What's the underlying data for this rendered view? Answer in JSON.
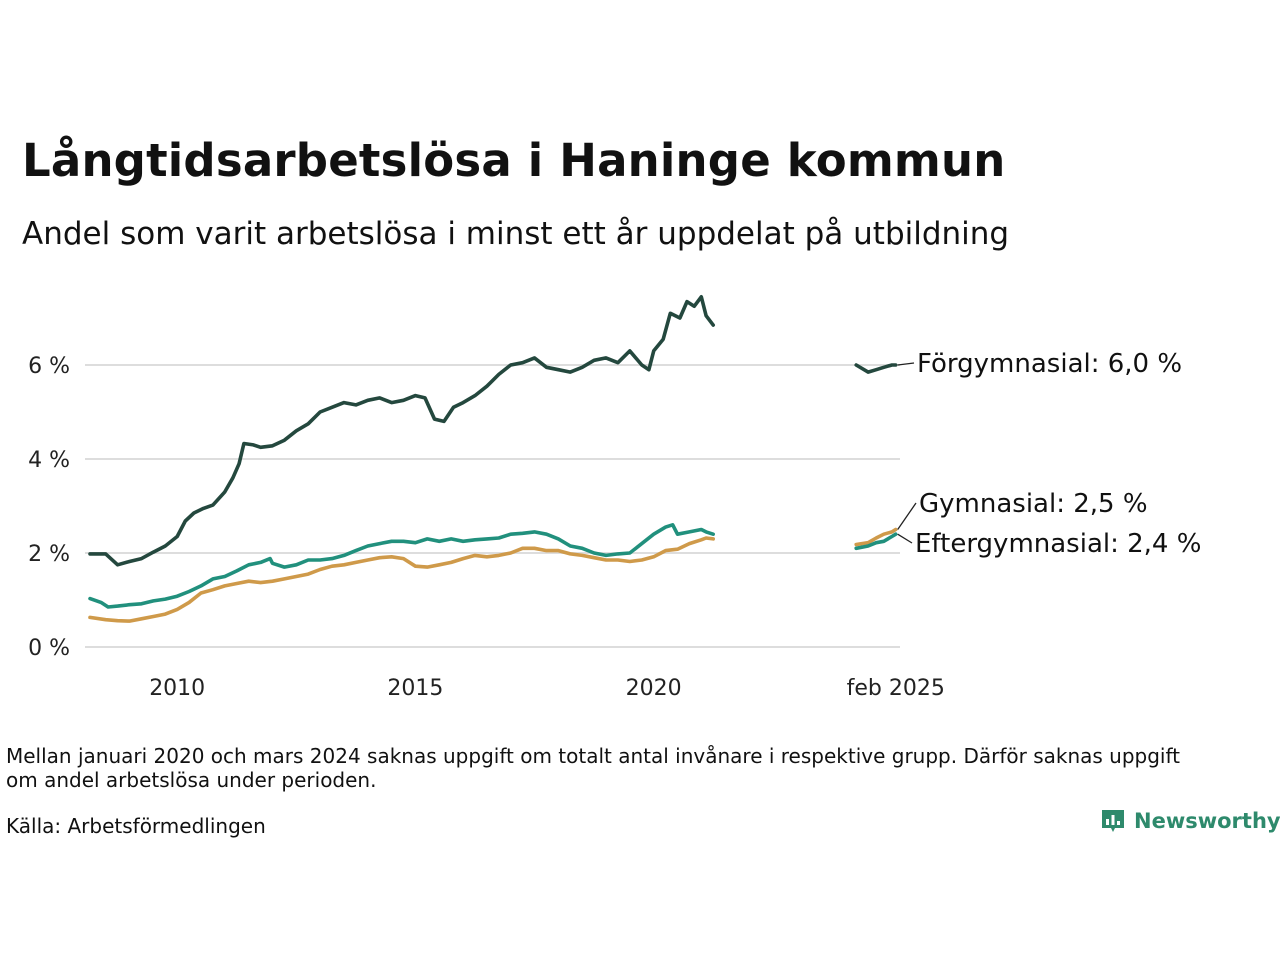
{
  "title": "Långtidsarbetslösa i Haninge kommun",
  "subtitle": "Andel som varit arbetslösa i minst ett år uppdelat på utbildning",
  "note": "Mellan januari 2020 och mars 2024 saknas uppgift om totalt antal invånare i respektive grupp. Därför saknas uppgift om andel arbetslösa under perioden.",
  "source": "Källa: Arbetsförmedlingen",
  "logo_text": "Newsworthy",
  "colors": {
    "forgymnasial": "#24483e",
    "gymnasial": "#cf9a4a",
    "eftergymnasial": "#21907d",
    "grid": "#dddddd",
    "brand": "#2e8a6c"
  },
  "chart_data": {
    "type": "line",
    "title": "Långtidsarbetslösa i Haninge kommun",
    "subtitle": "Andel som varit arbetslösa i minst ett år uppdelat på utbildning",
    "ylim": [
      0,
      7.5
    ],
    "y_ticks": [
      0,
      2,
      4,
      6
    ],
    "y_tick_labels": [
      "0 %",
      "2 %",
      "4 %",
      "6 %"
    ],
    "xlim": [
      2008.17,
      2025.17
    ],
    "x_ticks": [
      2010,
      2015,
      2020,
      2025.08
    ],
    "x_tick_labels": [
      "2010",
      "2015",
      "2020",
      "feb 2025"
    ],
    "grid": true,
    "legend": "direct labels at right",
    "series": [
      {
        "name": "Förgymnasial",
        "end_label": "Förgymnasial: 6,0 %",
        "color": "#24483e",
        "segments": [
          [
            [
              2008.17,
              1.98
            ],
            [
              2008.5,
              1.98
            ],
            [
              2008.75,
              1.75
            ],
            [
              2009.0,
              1.82
            ],
            [
              2009.25,
              1.88
            ],
            [
              2009.5,
              2.02
            ],
            [
              2009.75,
              2.15
            ],
            [
              2010.0,
              2.35
            ],
            [
              2010.17,
              2.68
            ],
            [
              2010.35,
              2.85
            ],
            [
              2010.55,
              2.95
            ],
            [
              2010.75,
              3.02
            ],
            [
              2011.0,
              3.3
            ],
            [
              2011.17,
              3.6
            ],
            [
              2011.3,
              3.9
            ],
            [
              2011.4,
              4.33
            ],
            [
              2011.6,
              4.3
            ],
            [
              2011.75,
              4.25
            ],
            [
              2012.0,
              4.28
            ],
            [
              2012.25,
              4.4
            ],
            [
              2012.5,
              4.6
            ],
            [
              2012.75,
              4.75
            ],
            [
              2013.0,
              5.0
            ],
            [
              2013.25,
              5.1
            ],
            [
              2013.5,
              5.2
            ],
            [
              2013.75,
              5.15
            ],
            [
              2014.0,
              5.25
            ],
            [
              2014.25,
              5.3
            ],
            [
              2014.5,
              5.2
            ],
            [
              2014.75,
              5.25
            ],
            [
              2015.0,
              5.35
            ],
            [
              2015.2,
              5.3
            ],
            [
              2015.4,
              4.85
            ],
            [
              2015.6,
              4.8
            ],
            [
              2015.8,
              5.1
            ],
            [
              2016.0,
              5.2
            ],
            [
              2016.25,
              5.35
            ],
            [
              2016.5,
              5.55
            ],
            [
              2016.75,
              5.8
            ],
            [
              2017.0,
              6.0
            ],
            [
              2017.25,
              6.05
            ],
            [
              2017.5,
              6.15
            ],
            [
              2017.75,
              5.95
            ],
            [
              2018.0,
              5.9
            ],
            [
              2018.25,
              5.85
            ],
            [
              2018.5,
              5.95
            ],
            [
              2018.75,
              6.1
            ],
            [
              2019.0,
              6.15
            ],
            [
              2019.25,
              6.05
            ],
            [
              2019.5,
              6.3
            ],
            [
              2019.75,
              6.0
            ],
            [
              2019.9,
              5.9
            ],
            [
              2020.0,
              6.3
            ],
            [
              2020.2,
              6.55
            ],
            [
              2020.35,
              7.1
            ],
            [
              2020.55,
              7.0
            ],
            [
              2020.7,
              7.35
            ],
            [
              2020.85,
              7.25
            ],
            [
              2021.0,
              7.45
            ],
            [
              2021.1,
              7.05
            ],
            [
              2021.25,
              6.85
            ]
          ],
          [
            [
              2024.25,
              6.0
            ],
            [
              2024.5,
              5.85
            ],
            [
              2024.67,
              5.9
            ],
            [
              2024.83,
              5.95
            ],
            [
              2025.0,
              6.0
            ],
            [
              2025.08,
              6.0
            ]
          ]
        ]
      },
      {
        "name": "Gymnasial",
        "end_label": "Gymnasial: 2,5 %",
        "color": "#cf9a4a",
        "segments": [
          [
            [
              2008.17,
              0.63
            ],
            [
              2008.5,
              0.58
            ],
            [
              2008.75,
              0.56
            ],
            [
              2009.0,
              0.55
            ],
            [
              2009.25,
              0.6
            ],
            [
              2009.5,
              0.65
            ],
            [
              2009.75,
              0.7
            ],
            [
              2010.0,
              0.8
            ],
            [
              2010.25,
              0.95
            ],
            [
              2010.5,
              1.15
            ],
            [
              2010.75,
              1.22
            ],
            [
              2011.0,
              1.3
            ],
            [
              2011.25,
              1.35
            ],
            [
              2011.5,
              1.4
            ],
            [
              2011.75,
              1.37
            ],
            [
              2012.0,
              1.4
            ],
            [
              2012.25,
              1.45
            ],
            [
              2012.5,
              1.5
            ],
            [
              2012.75,
              1.55
            ],
            [
              2013.0,
              1.65
            ],
            [
              2013.25,
              1.72
            ],
            [
              2013.5,
              1.75
            ],
            [
              2013.75,
              1.8
            ],
            [
              2014.0,
              1.85
            ],
            [
              2014.25,
              1.9
            ],
            [
              2014.5,
              1.92
            ],
            [
              2014.75,
              1.88
            ],
            [
              2015.0,
              1.72
            ],
            [
              2015.25,
              1.7
            ],
            [
              2015.5,
              1.75
            ],
            [
              2015.75,
              1.8
            ],
            [
              2016.0,
              1.88
            ],
            [
              2016.25,
              1.95
            ],
            [
              2016.5,
              1.92
            ],
            [
              2016.75,
              1.95
            ],
            [
              2017.0,
              2.0
            ],
            [
              2017.25,
              2.1
            ],
            [
              2017.5,
              2.1
            ],
            [
              2017.75,
              2.05
            ],
            [
              2018.0,
              2.05
            ],
            [
              2018.25,
              1.98
            ],
            [
              2018.5,
              1.95
            ],
            [
              2018.75,
              1.9
            ],
            [
              2019.0,
              1.85
            ],
            [
              2019.25,
              1.85
            ],
            [
              2019.5,
              1.82
            ],
            [
              2019.75,
              1.85
            ],
            [
              2020.0,
              1.92
            ],
            [
              2020.25,
              2.05
            ],
            [
              2020.5,
              2.08
            ],
            [
              2020.75,
              2.2
            ],
            [
              2021.0,
              2.28
            ],
            [
              2021.1,
              2.32
            ],
            [
              2021.25,
              2.3
            ]
          ],
          [
            [
              2024.25,
              2.18
            ],
            [
              2024.5,
              2.22
            ],
            [
              2024.67,
              2.32
            ],
            [
              2024.83,
              2.4
            ],
            [
              2025.0,
              2.45
            ],
            [
              2025.08,
              2.5
            ]
          ]
        ]
      },
      {
        "name": "Eftergymnasial",
        "end_label": "Eftergymnasial: 2,4 %",
        "color": "#21907d",
        "segments": [
          [
            [
              2008.17,
              1.03
            ],
            [
              2008.4,
              0.95
            ],
            [
              2008.55,
              0.85
            ],
            [
              2008.75,
              0.87
            ],
            [
              2009.0,
              0.9
            ],
            [
              2009.25,
              0.92
            ],
            [
              2009.5,
              0.98
            ],
            [
              2009.75,
              1.02
            ],
            [
              2010.0,
              1.08
            ],
            [
              2010.25,
              1.18
            ],
            [
              2010.5,
              1.3
            ],
            [
              2010.75,
              1.45
            ],
            [
              2011.0,
              1.5
            ],
            [
              2011.25,
              1.62
            ],
            [
              2011.5,
              1.75
            ],
            [
              2011.75,
              1.8
            ],
            [
              2011.95,
              1.88
            ],
            [
              2012.0,
              1.78
            ],
            [
              2012.25,
              1.7
            ],
            [
              2012.5,
              1.75
            ],
            [
              2012.75,
              1.85
            ],
            [
              2013.0,
              1.85
            ],
            [
              2013.25,
              1.88
            ],
            [
              2013.5,
              1.95
            ],
            [
              2013.75,
              2.05
            ],
            [
              2014.0,
              2.15
            ],
            [
              2014.25,
              2.2
            ],
            [
              2014.5,
              2.25
            ],
            [
              2014.75,
              2.25
            ],
            [
              2015.0,
              2.22
            ],
            [
              2015.25,
              2.3
            ],
            [
              2015.5,
              2.25
            ],
            [
              2015.75,
              2.3
            ],
            [
              2016.0,
              2.25
            ],
            [
              2016.25,
              2.28
            ],
            [
              2016.5,
              2.3
            ],
            [
              2016.75,
              2.32
            ],
            [
              2017.0,
              2.4
            ],
            [
              2017.25,
              2.42
            ],
            [
              2017.5,
              2.45
            ],
            [
              2017.75,
              2.4
            ],
            [
              2018.0,
              2.3
            ],
            [
              2018.25,
              2.15
            ],
            [
              2018.5,
              2.1
            ],
            [
              2018.75,
              2.0
            ],
            [
              2019.0,
              1.95
            ],
            [
              2019.25,
              1.98
            ],
            [
              2019.5,
              2.0
            ],
            [
              2019.75,
              2.2
            ],
            [
              2020.0,
              2.4
            ],
            [
              2020.25,
              2.55
            ],
            [
              2020.4,
              2.6
            ],
            [
              2020.5,
              2.4
            ],
            [
              2020.75,
              2.45
            ],
            [
              2021.0,
              2.5
            ],
            [
              2021.1,
              2.45
            ],
            [
              2021.25,
              2.4
            ]
          ],
          [
            [
              2024.25,
              2.1
            ],
            [
              2024.5,
              2.15
            ],
            [
              2024.67,
              2.22
            ],
            [
              2024.83,
              2.25
            ],
            [
              2025.0,
              2.35
            ],
            [
              2025.08,
              2.4
            ]
          ]
        ]
      }
    ]
  }
}
